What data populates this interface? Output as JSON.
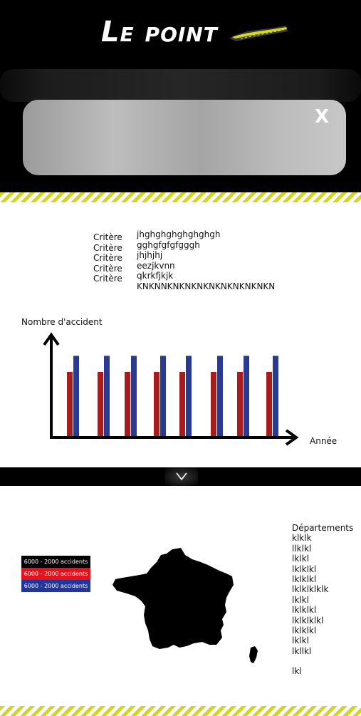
{
  "logo": {
    "text": "Le point"
  },
  "search": {
    "close_label": "X"
  },
  "criteria": {
    "labels": [
      "Critère",
      "Critère",
      "Critère",
      "Critère",
      "Critère"
    ],
    "values": [
      "jhghghghghghghgh",
      "gghgfgfgfgggh",
      "jhjhjhj",
      "eezjkvnn",
      "qkrkfjkjk",
      "KNKNNKNKNKNKNKNKNKNKNKN"
    ]
  },
  "chart_data": {
    "type": "bar",
    "xlabel": "Année",
    "ylabel": "Nombre d'accident",
    "categories": [
      "",
      "",
      "",
      "",
      "",
      "",
      "",
      ""
    ],
    "series": [
      {
        "values": [
          6,
          6,
          6,
          6,
          6,
          6,
          6,
          6
        ],
        "color": "#a81c1c"
      },
      {
        "values": [
          7.5,
          7.5,
          7.5,
          7.5,
          7.5,
          7.5,
          7.5,
          7.5
        ],
        "color": "#2a3a92"
      }
    ],
    "ylim": [
      0,
      10
    ],
    "grid": false,
    "legend": "none"
  },
  "legend": {
    "items": [
      {
        "label": "6000 - 2000 accidents",
        "color": "#000000"
      },
      {
        "label": "6000 - 2000 accidents",
        "color": "#e3121c"
      },
      {
        "label": "6000 - 2000 accidents",
        "color": "#22369a"
      }
    ]
  },
  "departements": {
    "title": "Départements",
    "items": [
      "klklk",
      "llklkl",
      "lklkl",
      "lklklkl",
      "lklklkl",
      "lklklklklk",
      "lklkl",
      "lklklkl",
      "lklklklkl",
      "lklklkl",
      "lklkl",
      "lkllkl"
    ],
    "footer": "lkl"
  },
  "colors": {
    "accent_stripe": "#d4d428",
    "header_bg": "#000000"
  },
  "icons": {
    "close": "close-icon",
    "chevron": "chevron-down-icon"
  }
}
